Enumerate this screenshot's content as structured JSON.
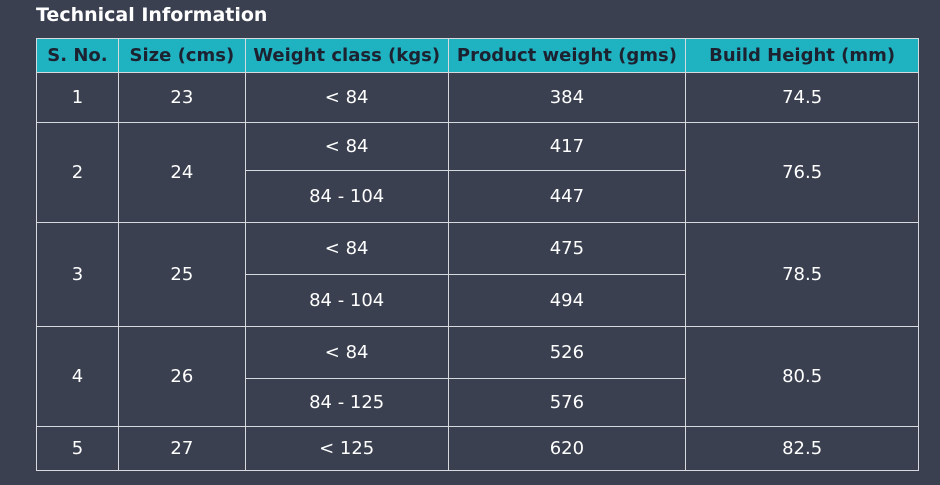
{
  "title": "Technical Information",
  "table": {
    "header": [
      "S. No.",
      "Size (cms)",
      "Weight class (kgs)",
      "Product weight (gms)",
      "Build Height (mm)"
    ],
    "groups": [
      {
        "sno": "1",
        "size": "23",
        "build_height": "74.5",
        "rows": [
          {
            "weight_class": "< 84",
            "product_weight": "384"
          }
        ]
      },
      {
        "sno": "2",
        "size": "24",
        "build_height": "76.5",
        "rows": [
          {
            "weight_class": "< 84",
            "product_weight": "417"
          },
          {
            "weight_class": "84 - 104",
            "product_weight": "447"
          }
        ]
      },
      {
        "sno": "3",
        "size": "25",
        "build_height": "78.5",
        "rows": [
          {
            "weight_class": "< 84",
            "product_weight": "475"
          },
          {
            "weight_class": "84 - 104",
            "product_weight": "494"
          }
        ]
      },
      {
        "sno": "4",
        "size": "26",
        "build_height": "80.5",
        "rows": [
          {
            "weight_class": "< 84",
            "product_weight": "526"
          },
          {
            "weight_class": "84 - 125",
            "product_weight": "576"
          }
        ]
      },
      {
        "sno": "5",
        "size": "27",
        "build_height": "82.5",
        "rows": [
          {
            "weight_class": "< 125",
            "product_weight": "620"
          }
        ]
      }
    ]
  }
}
